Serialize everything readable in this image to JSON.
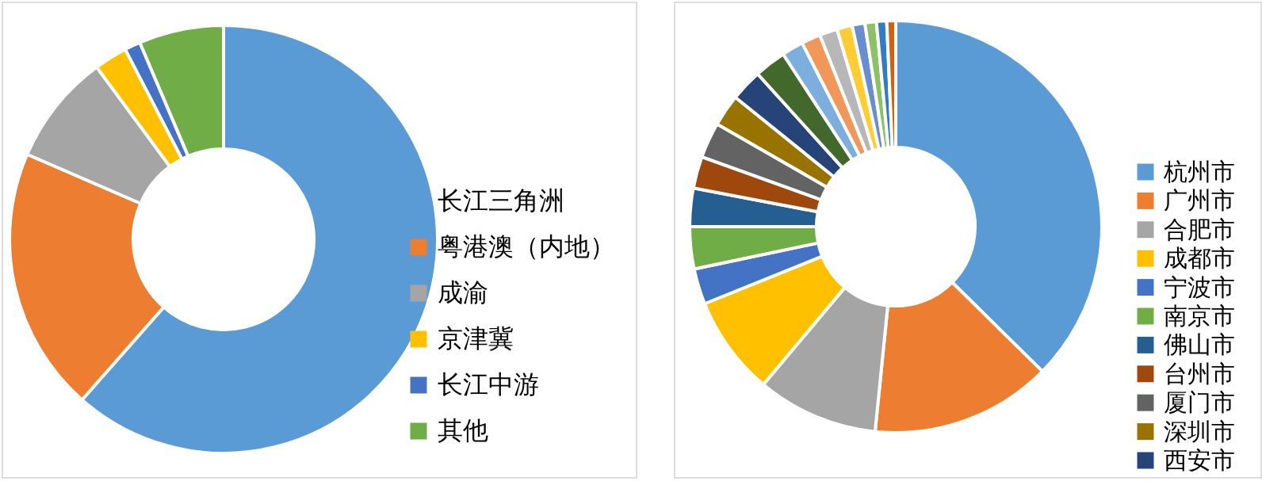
{
  "chart_data": [
    {
      "type": "donut",
      "categories": [
        "长江三角洲",
        "粤港澳（内地）",
        "成渝",
        "京津冀",
        "长江中游",
        "其他"
      ],
      "values": [
        61.5,
        20,
        8.4,
        2.5,
        1.2,
        6.4
      ],
      "colors": [
        "#5b9bd5",
        "#ed7d31",
        "#a5a5a5",
        "#ffc000",
        "#4472c4",
        "#70ad47"
      ],
      "legend": "right"
    },
    {
      "type": "donut",
      "categories": [
        "杭州市",
        "广州市",
        "合肥市",
        "成都市",
        "宁波市",
        "南京市",
        "佛山市",
        "台州市",
        "厦门市",
        "深圳市",
        "西安市",
        null,
        null,
        null,
        null,
        null,
        null,
        null,
        null,
        null
      ],
      "values": [
        37.4,
        14.2,
        9.5,
        7.8,
        2.8,
        3.3,
        3,
        2.5,
        2.8,
        2.5,
        2.5,
        2.5,
        1.7,
        1.5,
        1.4,
        1.2,
        1.0,
        0.9,
        0.8,
        0.7
      ],
      "colors": [
        "#5b9bd5",
        "#ed7d31",
        "#a5a5a5",
        "#ffc000",
        "#4472c4",
        "#70ad47",
        "#255e91",
        "#9e480e",
        "#636363",
        "#997300",
        "#264478",
        "#43682b",
        "#7cafdd",
        "#f1975a",
        "#b7b7b7",
        "#ffcd33",
        "#698ed0",
        "#8cc168",
        "#327dc2",
        "#d26012"
      ],
      "legend": "right"
    }
  ]
}
